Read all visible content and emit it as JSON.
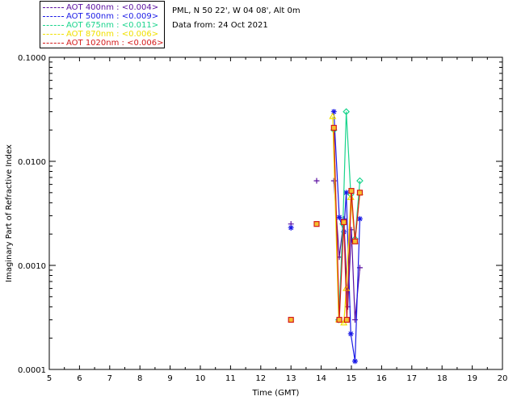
{
  "header": {
    "site": "PML, N 50 22', W 04 08', Alt 0m",
    "date": "Data from: 24 Oct 2021"
  },
  "legend": [
    {
      "label": "AOT  400nm : <0.004>",
      "color": "#5a0fa0"
    },
    {
      "label": "AOT  500nm : <0.009>",
      "color": "#1a1ae6"
    },
    {
      "label": "AOT  675nm : <0.011>",
      "color": "#19d48c"
    },
    {
      "label": "AOT  870nm : <0.006>",
      "color": "#f0e000"
    },
    {
      "label": "AOT 1020nm : <0.006>",
      "color": "#d41a1a"
    }
  ],
  "chart_data": {
    "type": "scatter",
    "xlabel": "Time (GMT)",
    "ylabel": "Imaginary Part of Refractive Index",
    "xlim": [
      5,
      20
    ],
    "ylim": [
      0.0001,
      0.1
    ],
    "yscale": "log",
    "xticks": [
      "5",
      "6",
      "7",
      "8",
      "9",
      "10",
      "11",
      "12",
      "13",
      "14",
      "15",
      "16",
      "17",
      "18",
      "19",
      "20"
    ],
    "yticks": [
      "0.0001",
      "0.0010",
      "0.0100",
      "0.1000"
    ],
    "grid": false,
    "series": [
      {
        "name": "AOT  400nm : <0.004>",
        "color": "#5a0fa0",
        "marker": "plus",
        "x": [
          13.0,
          13.85,
          14.42,
          14.6,
          14.75,
          14.88,
          15.0,
          15.12,
          15.28
        ],
        "y": [
          0.0025,
          0.0065,
          0.0065,
          0.0012,
          0.0028,
          0.0004,
          0.0022,
          0.0003,
          0.00095
        ]
      },
      {
        "name": "AOT  500nm : <0.009>",
        "color": "#1a1ae6",
        "marker": "asterisk",
        "x": [
          13.0,
          14.42,
          14.6,
          14.75,
          14.83,
          14.98,
          15.12,
          15.28
        ],
        "y": [
          0.0023,
          0.03,
          0.0029,
          0.0021,
          0.005,
          0.00022,
          0.00012,
          0.0028
        ]
      },
      {
        "name": "AOT  675nm : <0.011>",
        "color": "#19d48c",
        "marker": "diamond",
        "x": [
          14.42,
          14.58,
          14.72,
          14.83,
          14.98,
          15.12,
          15.28
        ],
        "y": [
          0.02,
          0.0003,
          0.0025,
          0.03,
          0.0048,
          0.0018,
          0.0065
        ]
      },
      {
        "name": "AOT  870nm : <0.006>",
        "color": "#f0e000",
        "marker": "triangle",
        "x": [
          14.38,
          14.58,
          14.75,
          14.83,
          14.98,
          15.12,
          15.28
        ],
        "y": [
          0.027,
          0.0003,
          0.00028,
          0.0006,
          0.0045,
          0.0017,
          0.005
        ]
      },
      {
        "name": "AOT 1020nm : <0.006>",
        "color": "#d41a1a",
        "marker": "square",
        "x": [
          13.0,
          13.85,
          14.42,
          14.6,
          14.75,
          14.85,
          15.0,
          15.12,
          15.28
        ],
        "y": [
          0.0003,
          0.0025,
          0.021,
          0.0003,
          0.0026,
          0.0003,
          0.0052,
          0.0017,
          0.005
        ]
      }
    ]
  }
}
